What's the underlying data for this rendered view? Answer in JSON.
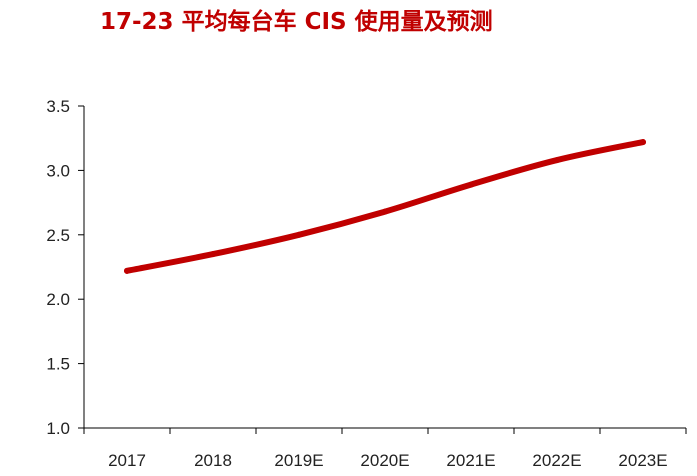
{
  "chart_data": {
    "type": "line",
    "title": "17-23 平均每台车 CIS 使用量及预测",
    "xlabel": "",
    "ylabel": "",
    "categories": [
      "2017",
      "2018",
      "2019E",
      "2020E",
      "2021E",
      "2022E",
      "2023E"
    ],
    "series": [
      {
        "name": "",
        "values": [
          2.22,
          2.35,
          2.5,
          2.68,
          2.89,
          3.08,
          3.22
        ]
      }
    ],
    "ylim": [
      1.0,
      3.5
    ],
    "yticks": [
      "1.0",
      "1.5",
      "2.0",
      "2.5",
      "3.0",
      "3.5"
    ],
    "grid": false,
    "legend": "none",
    "colors": {
      "line": "#c00000",
      "title": "#c00000",
      "axis": "#000000"
    }
  }
}
